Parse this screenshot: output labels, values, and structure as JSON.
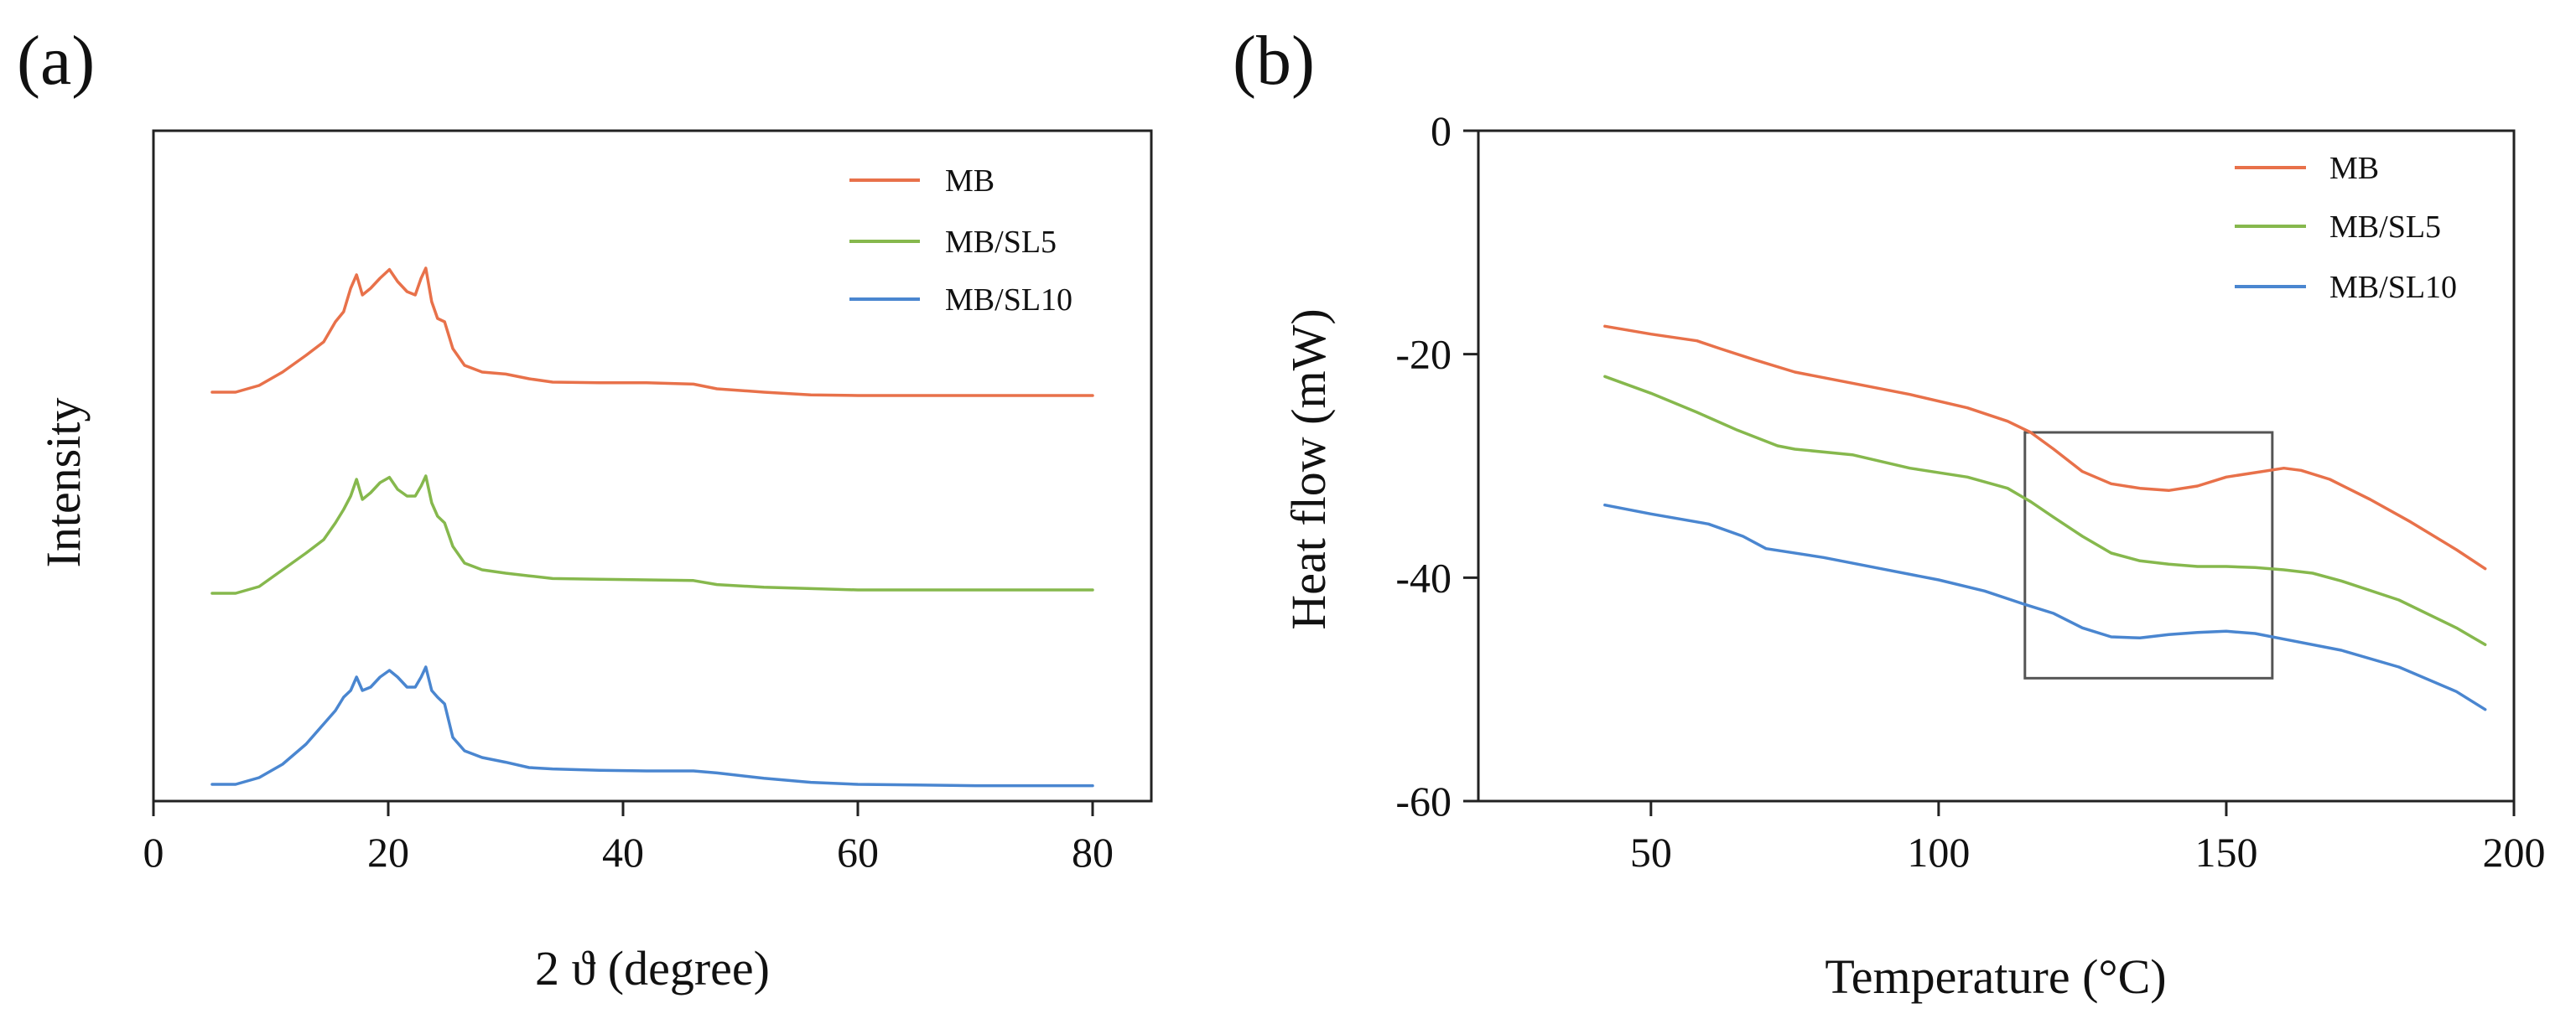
{
  "figure": {
    "colors": {
      "MB": "#e8714a",
      "MB/SL5": "#86b84d",
      "MB/SL10": "#4a86d0",
      "axis": "#222222",
      "box": "#555555"
    }
  },
  "chart_data": [
    {
      "panel_label": "(a)",
      "type": "line",
      "title": "",
      "xlabel": "2 ϑ (degree)",
      "ylabel": "Intensity",
      "xlim": [
        0,
        85
      ],
      "ylim": [
        0,
        100
      ],
      "yticks_shown": false,
      "xticks": [
        0,
        20,
        40,
        60,
        80
      ],
      "xtick_labels": [
        "0",
        "20",
        "40",
        "60",
        "80"
      ],
      "legend": {
        "position": "top-right",
        "entries": [
          "MB",
          "MB/SL5",
          "MB/SL10"
        ]
      },
      "series": [
        {
          "name": "MB",
          "color": "#e8714a",
          "x": [
            5,
            7,
            9,
            11,
            13,
            14.5,
            15.5,
            16.2,
            16.8,
            17.3,
            17.8,
            18.5,
            19.3,
            20.1,
            20.8,
            21.6,
            22.3,
            22.8,
            23.2,
            23.7,
            24.2,
            24.8,
            25.5,
            26.5,
            28,
            30,
            32,
            34,
            38,
            42,
            46,
            48,
            52,
            56,
            60,
            65,
            70,
            75,
            80
          ],
          "y": [
            61.0,
            61.0,
            62.0,
            64.0,
            66.5,
            68.5,
            71.5,
            73.0,
            76.5,
            78.5,
            75.5,
            76.5,
            78.0,
            79.3,
            77.5,
            76.0,
            75.5,
            78.0,
            79.5,
            74.5,
            72.0,
            71.5,
            67.5,
            65.0,
            64.0,
            63.7,
            63.0,
            62.5,
            62.4,
            62.4,
            62.2,
            61.5,
            61.0,
            60.6,
            60.5,
            60.5,
            60.5,
            60.5,
            60.5
          ]
        },
        {
          "name": "MB/SL5",
          "color": "#86b84d",
          "x": [
            5,
            7,
            9,
            11,
            13,
            14.5,
            15.5,
            16.2,
            16.8,
            17.3,
            17.8,
            18.5,
            19.3,
            20.1,
            20.8,
            21.6,
            22.3,
            22.8,
            23.2,
            23.7,
            24.2,
            24.8,
            25.5,
            26.5,
            28,
            30,
            32,
            34,
            38,
            42,
            46,
            48,
            52,
            56,
            60,
            65,
            70,
            75,
            80
          ],
          "y": [
            31.0,
            31.0,
            32.0,
            34.5,
            37.0,
            39.0,
            41.5,
            43.5,
            45.5,
            48.0,
            45.0,
            46.0,
            47.5,
            48.3,
            46.5,
            45.5,
            45.5,
            47.0,
            48.5,
            44.5,
            42.5,
            41.5,
            38.0,
            35.5,
            34.5,
            34.0,
            33.6,
            33.2,
            33.1,
            33.0,
            32.9,
            32.3,
            31.9,
            31.7,
            31.5,
            31.5,
            31.5,
            31.5,
            31.5
          ]
        },
        {
          "name": "MB/SL10",
          "color": "#4a86d0",
          "x": [
            5,
            7,
            9,
            11,
            13,
            14.5,
            15.5,
            16.2,
            16.8,
            17.3,
            17.8,
            18.5,
            19.3,
            20.1,
            20.8,
            21.6,
            22.3,
            22.8,
            23.2,
            23.7,
            24.2,
            24.8,
            25.5,
            26.5,
            28,
            30,
            32,
            34,
            38,
            42,
            46,
            48,
            52,
            56,
            60,
            65,
            70,
            75,
            80
          ],
          "y": [
            2.5,
            2.5,
            3.5,
            5.5,
            8.5,
            11.5,
            13.5,
            15.5,
            16.5,
            18.5,
            16.5,
            17.0,
            18.5,
            19.5,
            18.5,
            17.0,
            17.0,
            18.5,
            20.0,
            16.5,
            15.5,
            14.5,
            9.5,
            7.5,
            6.5,
            5.8,
            5.0,
            4.8,
            4.6,
            4.5,
            4.5,
            4.2,
            3.4,
            2.8,
            2.5,
            2.4,
            2.3,
            2.3,
            2.3
          ]
        }
      ]
    },
    {
      "panel_label": "(b)",
      "type": "line",
      "title": "",
      "xlabel": "Temperature (°C)",
      "ylabel": "Heat flow (mW)",
      "xlim": [
        20,
        200
      ],
      "ylim": [
        -60,
        0
      ],
      "xticks": [
        50,
        100,
        150,
        200
      ],
      "xtick_labels": [
        "50",
        "100",
        "150",
        "200"
      ],
      "yticks": [
        0,
        -20,
        -40,
        -60
      ],
      "ytick_labels": [
        "0",
        "-20",
        "-40",
        "-60"
      ],
      "legend": {
        "position": "top-right",
        "entries": [
          "MB",
          "MB/SL5",
          "MB/SL10"
        ]
      },
      "highlight_box": {
        "x_range": [
          115,
          158
        ],
        "y_range": [
          -49,
          -27
        ]
      },
      "series": [
        {
          "name": "MB",
          "color": "#e8714a",
          "x": [
            42,
            50,
            58,
            62,
            68,
            75,
            85,
            95,
            105,
            112,
            116,
            120,
            125,
            130,
            135,
            140,
            145,
            150,
            155,
            160,
            163,
            168,
            175,
            182,
            190,
            195
          ],
          "y": [
            -17.5,
            -18.2,
            -18.8,
            -19.5,
            -20.5,
            -21.6,
            -22.6,
            -23.6,
            -24.8,
            -26.0,
            -27.0,
            -28.5,
            -30.5,
            -31.6,
            -32.0,
            -32.2,
            -31.8,
            -31.0,
            -30.6,
            -30.2,
            -30.4,
            -31.2,
            -33.0,
            -35.0,
            -37.5,
            -39.2
          ]
        },
        {
          "name": "MB/SL5",
          "color": "#86b84d",
          "x": [
            42,
            50,
            58,
            65,
            72,
            75,
            85,
            95,
            105,
            112,
            116,
            120,
            125,
            130,
            135,
            140,
            145,
            150,
            155,
            160,
            165,
            170,
            180,
            190,
            195
          ],
          "y": [
            -22.0,
            -23.5,
            -25.2,
            -26.8,
            -28.2,
            -28.5,
            -29.0,
            -30.2,
            -31.0,
            -32.0,
            -33.2,
            -34.6,
            -36.3,
            -37.8,
            -38.5,
            -38.8,
            -39.0,
            -39.0,
            -39.1,
            -39.3,
            -39.6,
            -40.3,
            -42.0,
            -44.5,
            -46.0
          ]
        },
        {
          "name": "MB/SL10",
          "color": "#4a86d0",
          "x": [
            42,
            50,
            60,
            66,
            70,
            80,
            90,
            100,
            108,
            115,
            120,
            125,
            130,
            135,
            140,
            145,
            150,
            155,
            160,
            170,
            180,
            190,
            195
          ],
          "y": [
            -33.5,
            -34.3,
            -35.2,
            -36.3,
            -37.4,
            -38.2,
            -39.2,
            -40.2,
            -41.2,
            -42.4,
            -43.2,
            -44.5,
            -45.3,
            -45.4,
            -45.1,
            -44.9,
            -44.8,
            -45.0,
            -45.5,
            -46.5,
            -48.0,
            -50.2,
            -51.8
          ]
        }
      ]
    }
  ]
}
